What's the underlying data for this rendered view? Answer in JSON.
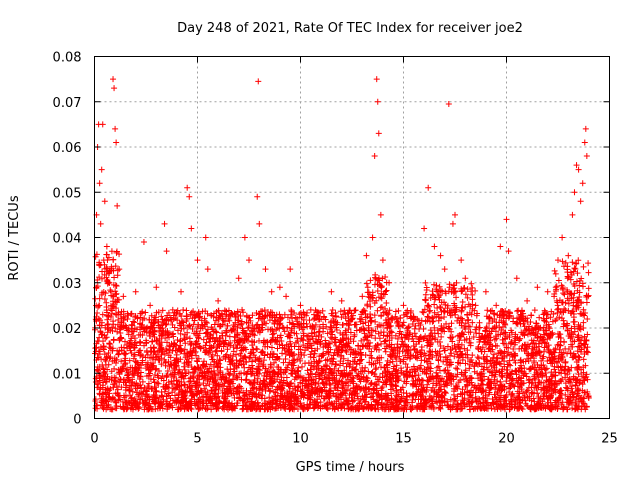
{
  "chart_data": {
    "type": "scatter",
    "title": "Day 248 of 2021, Rate Of TEC Index for receiver joe2",
    "xlabel": "GPS time / hours",
    "ylabel": "ROTI / TECUs",
    "xlim": [
      0,
      25
    ],
    "ylim": [
      0,
      0.08
    ],
    "xticks": [
      0,
      5,
      10,
      15,
      20,
      25
    ],
    "xtick_labels": [
      "0",
      "5",
      "10",
      "15",
      "20",
      "25"
    ],
    "yticks": [
      0,
      0.01,
      0.02,
      0.03,
      0.04,
      0.05,
      0.06,
      0.07,
      0.08
    ],
    "ytick_labels": [
      "0",
      "0.01",
      "0.02",
      "0.03",
      "0.04",
      "0.05",
      "0.06",
      "0.07",
      "0.08"
    ],
    "grid": true,
    "marker": "plus",
    "series_color": "#ff0000",
    "series": [
      {
        "name": "ROTI",
        "points": [
          [
            0.1,
            0.045
          ],
          [
            0.15,
            0.06
          ],
          [
            0.2,
            0.065
          ],
          [
            0.25,
            0.052
          ],
          [
            0.3,
            0.043
          ],
          [
            0.35,
            0.055
          ],
          [
            0.4,
            0.065
          ],
          [
            0.45,
            0.035
          ],
          [
            0.5,
            0.048
          ],
          [
            0.6,
            0.038
          ],
          [
            0.7,
            0.03
          ],
          [
            0.8,
            0.028
          ],
          [
            0.9,
            0.075
          ],
          [
            0.95,
            0.073
          ],
          [
            1.0,
            0.064
          ],
          [
            1.05,
            0.061
          ],
          [
            1.1,
            0.047
          ],
          [
            1.2,
            0.033
          ],
          [
            1.4,
            0.027
          ],
          [
            1.6,
            0.022
          ],
          [
            2.0,
            0.028
          ],
          [
            2.4,
            0.039
          ],
          [
            2.7,
            0.025
          ],
          [
            3.0,
            0.029
          ],
          [
            3.4,
            0.043
          ],
          [
            3.5,
            0.037
          ],
          [
            3.8,
            0.024
          ],
          [
            4.2,
            0.028
          ],
          [
            4.5,
            0.051
          ],
          [
            4.6,
            0.049
          ],
          [
            4.7,
            0.042
          ],
          [
            5.0,
            0.035
          ],
          [
            5.4,
            0.04
          ],
          [
            5.5,
            0.033
          ],
          [
            6.0,
            0.026
          ],
          [
            6.5,
            0.022
          ],
          [
            7.0,
            0.031
          ],
          [
            7.3,
            0.04
          ],
          [
            7.5,
            0.035
          ],
          [
            7.9,
            0.049
          ],
          [
            7.95,
            0.0745
          ],
          [
            8.0,
            0.043
          ],
          [
            8.3,
            0.033
          ],
          [
            8.6,
            0.028
          ],
          [
            9.0,
            0.029
          ],
          [
            9.3,
            0.027
          ],
          [
            9.5,
            0.033
          ],
          [
            10.0,
            0.025
          ],
          [
            10.5,
            0.024
          ],
          [
            11.0,
            0.022
          ],
          [
            11.5,
            0.028
          ],
          [
            12.0,
            0.026
          ],
          [
            12.5,
            0.022
          ],
          [
            13.0,
            0.027
          ],
          [
            13.2,
            0.036
          ],
          [
            13.5,
            0.04
          ],
          [
            13.6,
            0.058
          ],
          [
            13.7,
            0.075
          ],
          [
            13.75,
            0.07
          ],
          [
            13.8,
            0.063
          ],
          [
            13.9,
            0.045
          ],
          [
            14.0,
            0.035
          ],
          [
            14.3,
            0.03
          ],
          [
            15.0,
            0.025
          ],
          [
            15.5,
            0.022
          ],
          [
            16.0,
            0.042
          ],
          [
            16.2,
            0.051
          ],
          [
            16.5,
            0.038
          ],
          [
            16.8,
            0.036
          ],
          [
            17.0,
            0.033
          ],
          [
            17.2,
            0.0695
          ],
          [
            17.4,
            0.043
          ],
          [
            17.5,
            0.045
          ],
          [
            17.8,
            0.035
          ],
          [
            18.0,
            0.031
          ],
          [
            18.5,
            0.025
          ],
          [
            19.0,
            0.028
          ],
          [
            19.5,
            0.025
          ],
          [
            19.7,
            0.038
          ],
          [
            20.0,
            0.044
          ],
          [
            20.1,
            0.037
          ],
          [
            20.5,
            0.031
          ],
          [
            21.0,
            0.026
          ],
          [
            21.5,
            0.029
          ],
          [
            22.0,
            0.028
          ],
          [
            22.5,
            0.035
          ],
          [
            22.7,
            0.04
          ],
          [
            23.0,
            0.036
          ],
          [
            23.2,
            0.045
          ],
          [
            23.3,
            0.05
          ],
          [
            23.4,
            0.056
          ],
          [
            23.5,
            0.055
          ],
          [
            23.6,
            0.048
          ],
          [
            23.7,
            0.052
          ],
          [
            23.8,
            0.061
          ],
          [
            23.85,
            0.064
          ],
          [
            23.9,
            0.058
          ]
        ]
      }
    ]
  }
}
